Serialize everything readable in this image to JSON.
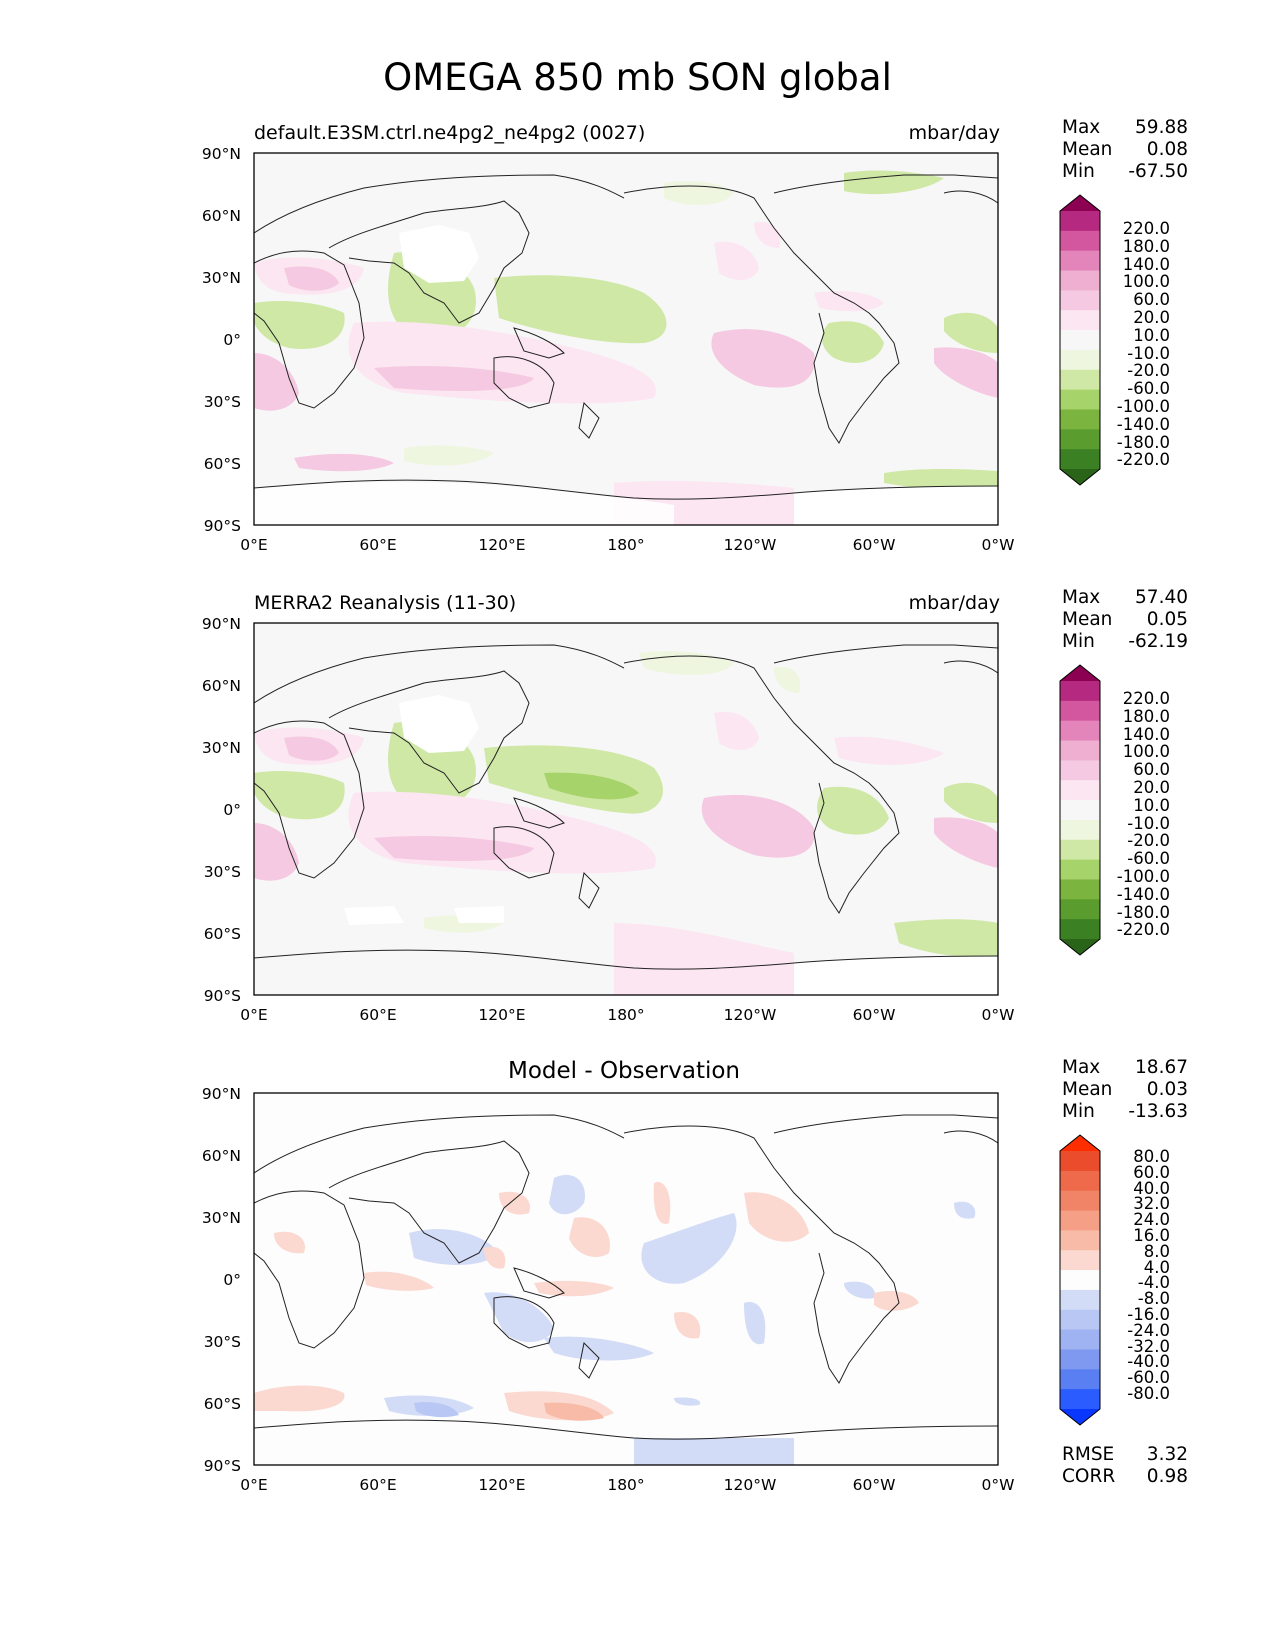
{
  "title": "OMEGA 850 mb SON global",
  "x_ticks": [
    "0°E",
    "60°E",
    "120°E",
    "180°",
    "120°W",
    "60°W",
    "0°W"
  ],
  "y_ticks": [
    "90°N",
    "60°N",
    "30°N",
    "0°",
    "30°S",
    "60°S",
    "90°S"
  ],
  "colors": {
    "omega_levels": [
      "#2a6418",
      "#3b8124",
      "#5a9c2e",
      "#7cb440",
      "#a6d36a",
      "#cfe8a6",
      "#eef6e0",
      "#f7f7f7",
      "#fbe6f1",
      "#f5c9e1",
      "#eeafd1",
      "#e385bb",
      "#d2579e",
      "#b52a80",
      "#8c0152"
    ],
    "diff_levels": [
      "#0a37ff",
      "#2a5cff",
      "#5a7ff3",
      "#7f99f0",
      "#9fb2f1",
      "#b8c7f4",
      "#d2dcf6",
      "#fdfdfd",
      "#fbd9d0",
      "#f8bba7",
      "#f59f86",
      "#f18466",
      "#ee6a4a",
      "#ea4c2c",
      "#ff2e00"
    ]
  },
  "panels": [
    {
      "id": "test",
      "left_title": "default.E3SM.ctrl.ne4pg2_ne4pg2 (0027)",
      "right_title": "mbar/day",
      "stats": {
        "max_label": "Max",
        "max": "59.88",
        "mean_label": "Mean",
        "mean": "0.08",
        "min_label": "Min",
        "min": "-67.50"
      },
      "colorbar_labels": [
        "220.0",
        "180.0",
        "140.0",
        "100.0",
        "60.0",
        "20.0",
        "10.0",
        "-10.0",
        "-20.0",
        "-60.0",
        "-100.0",
        "-140.0",
        "-180.0",
        "-220.0"
      ]
    },
    {
      "id": "reference",
      "left_title": "MERRA2 Reanalysis (11-30)",
      "right_title": "mbar/day",
      "stats": {
        "max_label": "Max",
        "max": "57.40",
        "mean_label": "Mean",
        "mean": "0.05",
        "min_label": "Min",
        "min": "-62.19"
      },
      "colorbar_labels": [
        "220.0",
        "180.0",
        "140.0",
        "100.0",
        "60.0",
        "20.0",
        "10.0",
        "-10.0",
        "-20.0",
        "-60.0",
        "-100.0",
        "-140.0",
        "-180.0",
        "-220.0"
      ]
    },
    {
      "id": "difference",
      "center_title": "Model - Observation",
      "stats": {
        "max_label": "Max",
        "max": "18.67",
        "mean_label": "Mean",
        "mean": "0.03",
        "min_label": "Min",
        "min": "-13.63"
      },
      "colorbar_labels": [
        "80.0",
        "60.0",
        "40.0",
        "32.0",
        "24.0",
        "16.0",
        "8.0",
        "4.0",
        "-4.0",
        "-8.0",
        "-16.0",
        "-24.0",
        "-32.0",
        "-40.0",
        "-60.0",
        "-80.0"
      ],
      "metrics": {
        "rmse_label": "RMSE",
        "rmse": "3.32",
        "corr_label": "CORR",
        "corr": "0.98"
      }
    }
  ]
}
